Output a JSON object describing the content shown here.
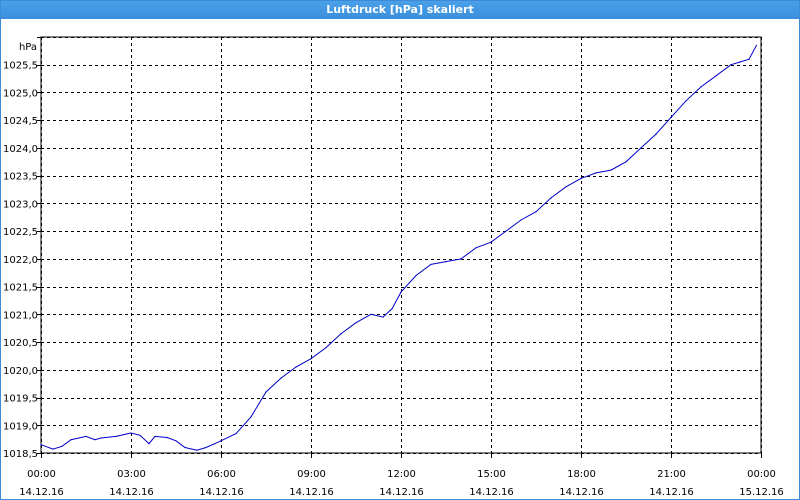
{
  "window": {
    "title": "Luftdruck [hPa] skaliert"
  },
  "chart_data": {
    "type": "line",
    "title": "Luftdruck [hPa] skaliert",
    "ylabel": "hPa",
    "xlabel": "",
    "ylim": [
      1018.5,
      1026.0
    ],
    "xlim": [
      0,
      24
    ],
    "grid": true,
    "line_color": "#0000c8",
    "y_ticks": [
      1018.5,
      1019.0,
      1019.5,
      1020.0,
      1020.5,
      1021.0,
      1021.5,
      1022.0,
      1022.5,
      1023.0,
      1023.5,
      1024.0,
      1024.5,
      1025.0,
      1025.5
    ],
    "y_tick_labels": [
      "1018,5",
      "1019,0",
      "1019,5",
      "1020,0",
      "1020,5",
      "1021,0",
      "1021,5",
      "1022,0",
      "1022,5",
      "1023,0",
      "1023,5",
      "1024,0",
      "1024,5",
      "1025,0",
      "1025,5"
    ],
    "x_ticks": [
      {
        "time": "00:00",
        "date": "14.12.16"
      },
      {
        "time": "03:00",
        "date": "14.12.16"
      },
      {
        "time": "06:00",
        "date": "14.12.16"
      },
      {
        "time": "09:00",
        "date": "14.12.16"
      },
      {
        "time": "12:00",
        "date": "14.12.16"
      },
      {
        "time": "15:00",
        "date": "14.12.16"
      },
      {
        "time": "18:00",
        "date": "14.12.16"
      },
      {
        "time": "21:00",
        "date": "14.12.16"
      },
      {
        "time": "00:00",
        "date": "15.12.16"
      }
    ],
    "series": [
      {
        "x": [
          0,
          0.4,
          0.7,
          1.0,
          1.5,
          1.8,
          2.0,
          2.5,
          3.0,
          3.3,
          3.6,
          3.8,
          4.2,
          4.5,
          4.8,
          5.2,
          5.5,
          5.8,
          6.0,
          6.5,
          7.0,
          7.5,
          8.0,
          8.5,
          9.0,
          9.5,
          10.0,
          10.5,
          11.0,
          11.4,
          11.7,
          12.0,
          12.5,
          13.0,
          13.5,
          14.0,
          14.5,
          15.0,
          15.5,
          16.0,
          16.5,
          17.0,
          17.5,
          18.0,
          18.5,
          19.0,
          19.5,
          20.0,
          20.5,
          21.0,
          21.5,
          22.0,
          22.5,
          23.0,
          23.3,
          23.6,
          23.85
        ],
        "y": [
          1018.65,
          1018.57,
          1018.62,
          1018.74,
          1018.8,
          1018.74,
          1018.77,
          1018.8,
          1018.86,
          1018.82,
          1018.67,
          1018.8,
          1018.78,
          1018.72,
          1018.6,
          1018.55,
          1018.6,
          1018.67,
          1018.72,
          1018.85,
          1019.15,
          1019.6,
          1019.85,
          1020.05,
          1020.2,
          1020.4,
          1020.65,
          1020.85,
          1021.0,
          1020.95,
          1021.1,
          1021.4,
          1021.7,
          1021.9,
          1021.95,
          1022.0,
          1022.2,
          1022.3,
          1022.5,
          1022.7,
          1022.85,
          1023.1,
          1023.3,
          1023.45,
          1023.55,
          1023.6,
          1023.75,
          1024.0,
          1024.25,
          1024.55,
          1024.85,
          1025.1,
          1025.3,
          1025.5,
          1025.55,
          1025.6,
          1025.85
        ]
      }
    ]
  }
}
